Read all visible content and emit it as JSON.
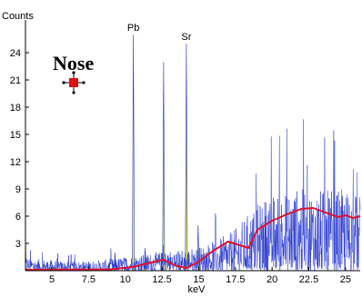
{
  "chart_data": {
    "type": "line",
    "title": "",
    "ylabel": "Counts",
    "xlabel": "keV",
    "xlim": [
      3.2,
      26.0
    ],
    "ylim": [
      0,
      27
    ],
    "x_ticks": [
      5,
      7.5,
      10,
      12.5,
      15,
      17.5,
      20,
      22.5,
      25
    ],
    "x_tick_labels": [
      "5",
      "7.5",
      "10",
      "12.5",
      "15",
      "17.5",
      "20",
      "22.5",
      "25"
    ],
    "y_ticks": [
      3,
      6,
      9,
      12,
      15,
      18,
      21,
      24
    ],
    "y_tick_labels": [
      "3",
      "6",
      "9",
      "12",
      "15",
      "18",
      "21",
      "24"
    ],
    "grid": false,
    "sample_label": "Nose",
    "peak_labels": [
      {
        "text": "Pb",
        "x": 10.55
      },
      {
        "text": "Sr",
        "x": 14.16
      }
    ],
    "peaks": [
      {
        "center": 10.55,
        "height": 26.0,
        "width": 0.07
      },
      {
        "center": 12.61,
        "height": 23.0,
        "width": 0.07
      },
      {
        "center": 14.16,
        "height": 25.0,
        "width": 0.07
      },
      {
        "center": 14.96,
        "height": 5.0,
        "width": 0.07
      },
      {
        "center": 11.35,
        "height": 2.5,
        "width": 0.07
      },
      {
        "center": 9.3,
        "height": 2.0,
        "width": 0.06
      }
    ],
    "series": [
      {
        "name": "",
        "role": "background-fit",
        "color": "#dd1133",
        "x": [
          3.2,
          9.0,
          10.5,
          11.5,
          12.6,
          13.5,
          14.2,
          15.0,
          16.0,
          17.0,
          17.8,
          18.4,
          19.0,
          20.0,
          21.0,
          22.0,
          22.8,
          23.3,
          24.0,
          24.5,
          25.0,
          25.5,
          26.0
        ],
        "y": [
          0.1,
          0.15,
          0.4,
          0.8,
          1.2,
          0.5,
          0.3,
          1.0,
          2.2,
          3.2,
          2.8,
          2.5,
          4.5,
          5.5,
          6.2,
          6.8,
          6.9,
          6.6,
          6.2,
          5.9,
          6.1,
          5.8,
          6.0
        ]
      }
    ],
    "noise_trace": {
      "name": "",
      "role": "raw-counts",
      "color": "#2233cc",
      "step_kev": 0.02,
      "envelope": {
        "x": [
          3.2,
          4.0,
          6.0,
          8.0,
          9.5,
          11.0,
          13.0,
          15.0,
          16.5,
          17.5,
          18.5,
          19.5,
          21.0,
          22.5,
          24.0,
          25.0,
          26.0
        ],
        "y": [
          1.6,
          1.3,
          1.0,
          1.1,
          1.4,
          1.8,
          2.2,
          2.6,
          3.6,
          4.6,
          6.5,
          8.0,
          9.0,
          9.2,
          8.8,
          9.0,
          8.5
        ]
      }
    },
    "marker": {
      "symbol": "crosshair",
      "color": "#dd1111"
    }
  }
}
